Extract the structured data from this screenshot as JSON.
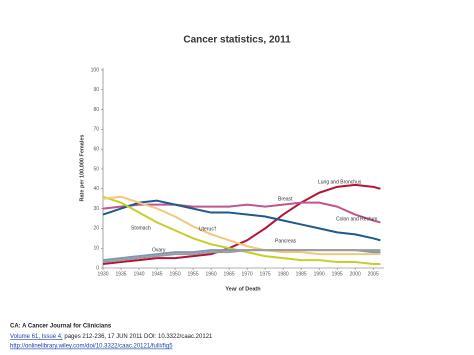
{
  "chart_data": {
    "type": "line",
    "title": "Cancer statistics, 2011",
    "x_label": "Year of Death",
    "y_label": "Rate per 100,000 Females",
    "x": [
      1930,
      1935,
      1940,
      1945,
      1950,
      1955,
      1960,
      1965,
      1970,
      1975,
      1980,
      1985,
      1990,
      1995,
      2000,
      2005,
      2007
    ],
    "xlim": [
      1930,
      2008
    ],
    "xticks": [
      1930,
      1935,
      1940,
      1945,
      1950,
      1955,
      1960,
      1965,
      1970,
      1975,
      1980,
      1985,
      1990,
      1995,
      2000,
      2005
    ],
    "ylim": [
      0,
      100
    ],
    "yticks": [
      0,
      10,
      20,
      30,
      40,
      50,
      60,
      70,
      80,
      90,
      100
    ],
    "series": [
      {
        "name": "Lung and Bronchus",
        "color": "#b5123a",
        "values": [
          2,
          3,
          4,
          5,
          5,
          6,
          7,
          10,
          14,
          20,
          27,
          33,
          38,
          41,
          42,
          41,
          40
        ]
      },
      {
        "name": "Breast",
        "color": "#c0558f",
        "values": [
          30,
          31,
          32,
          32,
          32,
          31,
          31,
          31,
          32,
          31,
          32,
          33,
          33,
          31,
          27,
          24,
          23
        ]
      },
      {
        "name": "Colon and Rectum",
        "color": "#1f5a8a",
        "values": [
          27,
          30,
          33,
          34,
          32,
          30,
          28,
          28,
          27,
          26,
          24,
          22,
          20,
          18,
          17,
          15,
          14
        ]
      },
      {
        "name": "Stomach",
        "color": "#c6cf2a",
        "values": [
          36,
          33,
          28,
          23,
          19,
          15,
          12,
          10,
          8,
          6,
          5,
          4,
          4,
          3,
          3,
          2,
          2
        ]
      },
      {
        "name": "Uterus†",
        "color": "#f2c77e",
        "values": [
          35,
          36,
          33,
          30,
          26,
          21,
          17,
          14,
          11,
          9,
          8,
          8,
          7,
          7,
          7,
          7,
          7
        ]
      },
      {
        "name": "Ovary",
        "color": "#7c9ab8",
        "values": [
          4,
          5,
          6,
          7,
          8,
          8,
          9,
          9,
          9,
          9,
          9,
          9,
          9,
          9,
          9,
          8,
          8
        ]
      },
      {
        "name": "Pancreas",
        "color": "#9c9c9c",
        "values": [
          3,
          4,
          5,
          6,
          7,
          7,
          8,
          8,
          9,
          9,
          9,
          9,
          9,
          9,
          9,
          9,
          9
        ]
      }
    ]
  },
  "caption": {
    "journal": "CA: A Cancer Journal for Clinicians",
    "citation_link": "Volume 61, Issue 4,",
    "citation_rest": " pages 212-236, 17 JUN 2011 DOI: 10.3322/caac.20121",
    "url": "http://onlinelibrary.wiley.com/doi/10.3322/caac.20121/full#fig5"
  }
}
